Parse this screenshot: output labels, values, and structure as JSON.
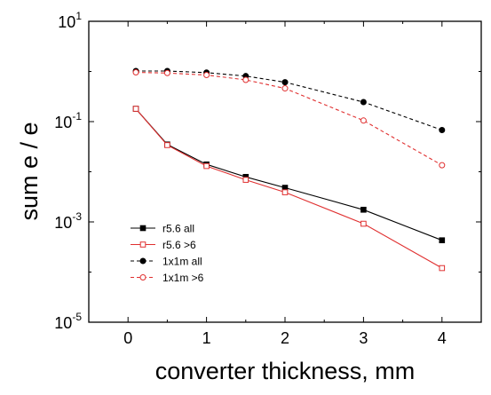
{
  "chart_data": {
    "type": "line",
    "xlabel": "converter thickness, mm",
    "ylabel": "sum e / e",
    "xlim": [
      -0.5,
      4.5
    ],
    "ylim_log10": [
      -5,
      1
    ],
    "yscale": "log",
    "x_ticks": [
      0,
      1,
      2,
      3,
      4
    ],
    "x_tick_labels": [
      "0",
      "1",
      "2",
      "3",
      "4"
    ],
    "y_ticks": [
      {
        "base": "10",
        "exp": "-5",
        "log": -5
      },
      {
        "base": "10",
        "exp": "-3",
        "log": -3
      },
      {
        "base": "10",
        "exp": "-1",
        "log": -1
      },
      {
        "base": "10",
        "exp": "1",
        "log": 1
      }
    ],
    "grid": false,
    "legend_position": "bottom-left",
    "series": [
      {
        "name": "r5.6 all",
        "color": "#000000",
        "dashed": false,
        "marker": "square-filled",
        "x": [
          0.1,
          0.5,
          1,
          1.5,
          2,
          3,
          4
        ],
        "y": [
          0.18,
          0.035,
          0.014,
          0.0079,
          0.0048,
          0.00175,
          0.00043
        ]
      },
      {
        "name": "r5.6 >6",
        "color": "#e03030",
        "dashed": false,
        "marker": "square-open",
        "x": [
          0.1,
          0.5,
          1,
          1.5,
          2,
          3,
          4
        ],
        "y": [
          0.18,
          0.034,
          0.013,
          0.0069,
          0.0039,
          0.00092,
          0.00012
        ]
      },
      {
        "name": "1x1m all",
        "color": "#000000",
        "dashed": true,
        "marker": "circle-filled",
        "x": [
          0.1,
          0.5,
          1,
          1.5,
          2,
          3,
          4
        ],
        "y": [
          1.02,
          1.02,
          0.95,
          0.81,
          0.61,
          0.245,
          0.068
        ]
      },
      {
        "name": "1x1m >6",
        "color": "#e03030",
        "dashed": true,
        "marker": "circle-open",
        "x": [
          0.1,
          0.5,
          1,
          1.5,
          2,
          3,
          4
        ],
        "y": [
          0.96,
          0.93,
          0.85,
          0.68,
          0.46,
          0.105,
          0.0135
        ]
      }
    ]
  }
}
